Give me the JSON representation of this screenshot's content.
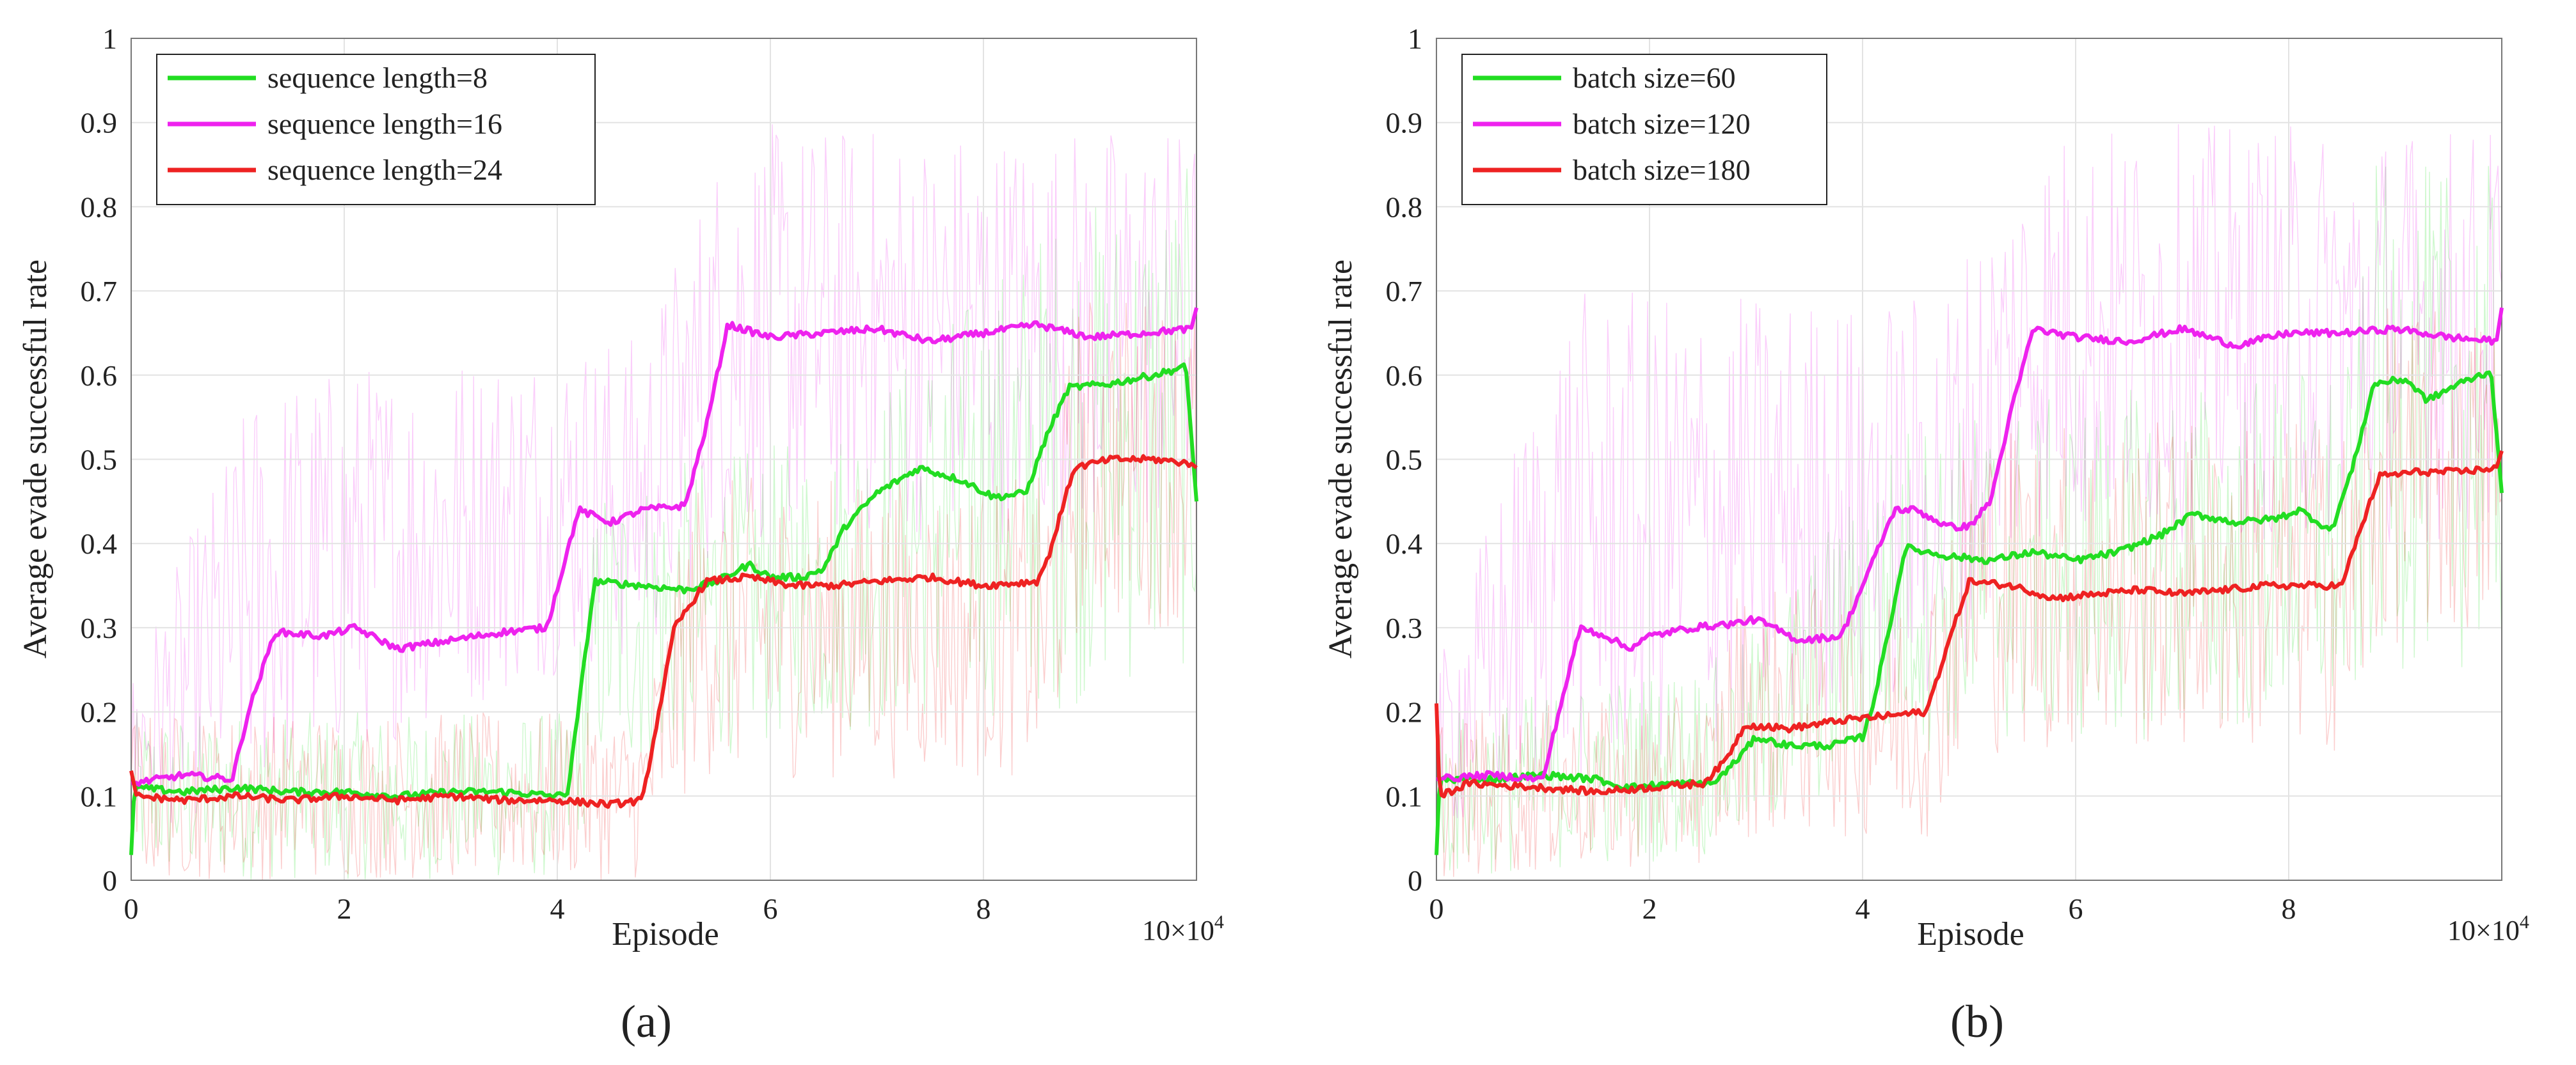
{
  "figure": {
    "exponent_label": "10×10",
    "exponent_sup": "4"
  },
  "chart_data": [
    {
      "type": "line",
      "panel_label": "(a)",
      "xlabel": "Episode",
      "ylabel": "Average evade successful rate",
      "xlim": [
        0,
        10
      ],
      "ylim": [
        0,
        1
      ],
      "xtick_labels": [
        "0",
        "2",
        "4",
        "6",
        "8",
        "10"
      ],
      "ytick_labels": [
        "0",
        "0.1",
        "0.2",
        "0.3",
        "0.4",
        "0.5",
        "0.6",
        "0.7",
        "0.8",
        "0.9",
        "1"
      ],
      "grid": true,
      "legend_position": "top-left",
      "series": [
        {
          "name": "sequence length=8",
          "color": "#22dd22",
          "noise": [
            [
              0,
              0.1,
              0.1
            ],
            [
              4.1,
              0.1,
              0.1
            ],
            [
              4.4,
              0.3,
              0.18
            ],
            [
              6.5,
              0.35,
              0.18
            ],
            [
              8.7,
              0.5,
              0.3
            ],
            [
              10,
              0.55,
              0.3
            ]
          ],
          "points": [
            [
              0,
              0.03
            ],
            [
              0.03,
              0.11
            ],
            [
              0.5,
              0.105
            ],
            [
              1.0,
              0.11
            ],
            [
              1.5,
              0.105
            ],
            [
              2.0,
              0.105
            ],
            [
              2.5,
              0.1
            ],
            [
              3.0,
              0.105
            ],
            [
              3.5,
              0.105
            ],
            [
              4.0,
              0.1
            ],
            [
              4.1,
              0.105
            ],
            [
              4.35,
              0.355
            ],
            [
              4.8,
              0.35
            ],
            [
              5.2,
              0.345
            ],
            [
              5.5,
              0.355
            ],
            [
              5.8,
              0.375
            ],
            [
              6.0,
              0.36
            ],
            [
              6.3,
              0.36
            ],
            [
              6.5,
              0.37
            ],
            [
              6.7,
              0.42
            ],
            [
              7.0,
              0.46
            ],
            [
              7.4,
              0.49
            ],
            [
              7.8,
              0.475
            ],
            [
              8.1,
              0.455
            ],
            [
              8.4,
              0.46
            ],
            [
              8.6,
              0.53
            ],
            [
              8.8,
              0.585
            ],
            [
              9.2,
              0.59
            ],
            [
              9.6,
              0.6
            ],
            [
              9.9,
              0.61
            ],
            [
              10.0,
              0.45
            ]
          ]
        },
        {
          "name": "sequence length=16",
          "color": "#ee22ee",
          "noise": [
            [
              0,
              0.15,
              0.1
            ],
            [
              1.2,
              0.35,
              0.25
            ],
            [
              4.1,
              0.45,
              0.2
            ],
            [
              4.8,
              0.45,
              0.2
            ],
            [
              5.6,
              0.65,
              0.25
            ],
            [
              10,
              0.65,
              0.25
            ]
          ],
          "points": [
            [
              0,
              0.115
            ],
            [
              0.5,
              0.125
            ],
            [
              0.95,
              0.12
            ],
            [
              1.1,
              0.2
            ],
            [
              1.35,
              0.295
            ],
            [
              1.8,
              0.29
            ],
            [
              2.1,
              0.3
            ],
            [
              2.5,
              0.275
            ],
            [
              3.0,
              0.285
            ],
            [
              3.5,
              0.295
            ],
            [
              3.9,
              0.3
            ],
            [
              4.05,
              0.37
            ],
            [
              4.2,
              0.44
            ],
            [
              4.5,
              0.425
            ],
            [
              4.8,
              0.44
            ],
            [
              5.2,
              0.445
            ],
            [
              5.4,
              0.54
            ],
            [
              5.6,
              0.66
            ],
            [
              6.0,
              0.645
            ],
            [
              6.5,
              0.65
            ],
            [
              7.0,
              0.655
            ],
            [
              7.5,
              0.64
            ],
            [
              8.0,
              0.65
            ],
            [
              8.5,
              0.66
            ],
            [
              9.0,
              0.645
            ],
            [
              9.5,
              0.65
            ],
            [
              9.95,
              0.655
            ],
            [
              10.0,
              0.68
            ]
          ]
        },
        {
          "name": "sequence length=24",
          "color": "#ee2222",
          "noise": [
            [
              0,
              0.1,
              0.1
            ],
            [
              4.8,
              0.1,
              0.1
            ],
            [
              5.3,
              0.3,
              0.18
            ],
            [
              8.6,
              0.3,
              0.18
            ],
            [
              8.9,
              0.5,
              0.2
            ],
            [
              10,
              0.5,
              0.2
            ]
          ],
          "points": [
            [
              0,
              0.13
            ],
            [
              0.05,
              0.1
            ],
            [
              0.5,
              0.095
            ],
            [
              1.0,
              0.1
            ],
            [
              1.5,
              0.095
            ],
            [
              2.0,
              0.1
            ],
            [
              2.5,
              0.095
            ],
            [
              3.0,
              0.1
            ],
            [
              3.5,
              0.095
            ],
            [
              4.0,
              0.095
            ],
            [
              4.5,
              0.09
            ],
            [
              4.8,
              0.095
            ],
            [
              5.1,
              0.3
            ],
            [
              5.4,
              0.355
            ],
            [
              5.8,
              0.36
            ],
            [
              6.2,
              0.35
            ],
            [
              6.6,
              0.35
            ],
            [
              7.0,
              0.355
            ],
            [
              7.5,
              0.36
            ],
            [
              8.0,
              0.35
            ],
            [
              8.5,
              0.355
            ],
            [
              8.6,
              0.38
            ],
            [
              8.85,
              0.49
            ],
            [
              9.2,
              0.5
            ],
            [
              9.6,
              0.5
            ],
            [
              9.95,
              0.495
            ],
            [
              10.0,
              0.49
            ]
          ]
        }
      ]
    },
    {
      "type": "line",
      "panel_label": "(b)",
      "xlabel": "Episode",
      "ylabel": "Average evade successful rate",
      "xlim": [
        0,
        10
      ],
      "ylim": [
        0,
        1
      ],
      "xtick_labels": [
        "0",
        "2",
        "4",
        "6",
        "8",
        "10"
      ],
      "ytick_labels": [
        "0",
        "0.1",
        "0.2",
        "0.3",
        "0.4",
        "0.5",
        "0.6",
        "0.7",
        "0.8",
        "0.9",
        "1"
      ],
      "grid": true,
      "legend_position": "top-left",
      "series": [
        {
          "name": "batch size=60",
          "color": "#22dd22",
          "noise": [
            [
              0,
              0.1,
              0.1
            ],
            [
              2.8,
              0.15,
              0.12
            ],
            [
              4.4,
              0.35,
              0.2
            ],
            [
              8.6,
              0.4,
              0.22
            ],
            [
              8.8,
              0.55,
              0.3
            ],
            [
              10,
              0.55,
              0.3
            ]
          ],
          "points": [
            [
              0,
              0.03
            ],
            [
              0.03,
              0.12
            ],
            [
              0.5,
              0.12
            ],
            [
              1.0,
              0.125
            ],
            [
              1.5,
              0.12
            ],
            [
              1.8,
              0.11
            ],
            [
              2.2,
              0.115
            ],
            [
              2.6,
              0.115
            ],
            [
              2.8,
              0.14
            ],
            [
              3.0,
              0.17
            ],
            [
              3.3,
              0.16
            ],
            [
              3.7,
              0.16
            ],
            [
              4.0,
              0.17
            ],
            [
              4.1,
              0.21
            ],
            [
              4.3,
              0.33
            ],
            [
              4.4,
              0.395
            ],
            [
              4.8,
              0.385
            ],
            [
              5.2,
              0.38
            ],
            [
              5.6,
              0.39
            ],
            [
              6.0,
              0.38
            ],
            [
              6.4,
              0.39
            ],
            [
              6.8,
              0.41
            ],
            [
              7.1,
              0.435
            ],
            [
              7.5,
              0.425
            ],
            [
              7.9,
              0.43
            ],
            [
              8.1,
              0.44
            ],
            [
              8.4,
              0.415
            ],
            [
              8.6,
              0.49
            ],
            [
              8.8,
              0.59
            ],
            [
              9.1,
              0.595
            ],
            [
              9.3,
              0.57
            ],
            [
              9.6,
              0.59
            ],
            [
              9.9,
              0.605
            ],
            [
              10.0,
              0.46
            ]
          ]
        },
        {
          "name": "batch size=120",
          "color": "#ee22ee",
          "noise": [
            [
              0,
              0.15,
              0.1
            ],
            [
              1.2,
              0.4,
              0.3
            ],
            [
              4.0,
              0.45,
              0.25
            ],
            [
              4.7,
              0.45,
              0.25
            ],
            [
              5.6,
              0.65,
              0.25
            ],
            [
              10,
              0.65,
              0.25
            ]
          ],
          "points": [
            [
              0,
              0.12
            ],
            [
              0.5,
              0.125
            ],
            [
              1.0,
              0.12
            ],
            [
              1.15,
              0.2
            ],
            [
              1.35,
              0.3
            ],
            [
              1.6,
              0.29
            ],
            [
              1.8,
              0.275
            ],
            [
              2.0,
              0.29
            ],
            [
              2.4,
              0.3
            ],
            [
              2.8,
              0.305
            ],
            [
              3.0,
              0.31
            ],
            [
              3.4,
              0.285
            ],
            [
              3.8,
              0.29
            ],
            [
              4.1,
              0.38
            ],
            [
              4.3,
              0.44
            ],
            [
              4.5,
              0.44
            ],
            [
              4.8,
              0.42
            ],
            [
              5.0,
              0.42
            ],
            [
              5.2,
              0.45
            ],
            [
              5.4,
              0.56
            ],
            [
              5.6,
              0.655
            ],
            [
              6.0,
              0.645
            ],
            [
              6.5,
              0.64
            ],
            [
              7.0,
              0.655
            ],
            [
              7.5,
              0.635
            ],
            [
              8.0,
              0.65
            ],
            [
              8.5,
              0.65
            ],
            [
              9.0,
              0.655
            ],
            [
              9.5,
              0.645
            ],
            [
              9.95,
              0.64
            ],
            [
              10.0,
              0.68
            ]
          ]
        },
        {
          "name": "batch size=180",
          "color": "#ee2222",
          "noise": [
            [
              0,
              0.1,
              0.1
            ],
            [
              2.6,
              0.12,
              0.1
            ],
            [
              2.8,
              0.2,
              0.15
            ],
            [
              4.6,
              0.2,
              0.15
            ],
            [
              5.0,
              0.35,
              0.2
            ],
            [
              8.6,
              0.35,
              0.2
            ],
            [
              8.9,
              0.48,
              0.2
            ],
            [
              10,
              0.48,
              0.2
            ]
          ],
          "points": [
            [
              0,
              0.21
            ],
            [
              0.03,
              0.1
            ],
            [
              0.3,
              0.115
            ],
            [
              1.0,
              0.11
            ],
            [
              1.5,
              0.105
            ],
            [
              2.0,
              0.11
            ],
            [
              2.5,
              0.115
            ],
            [
              2.7,
              0.14
            ],
            [
              2.9,
              0.185
            ],
            [
              3.3,
              0.18
            ],
            [
              3.8,
              0.19
            ],
            [
              4.2,
              0.195
            ],
            [
              4.6,
              0.2
            ],
            [
              4.8,
              0.28
            ],
            [
              5.0,
              0.355
            ],
            [
              5.4,
              0.35
            ],
            [
              5.8,
              0.335
            ],
            [
              6.2,
              0.34
            ],
            [
              6.6,
              0.345
            ],
            [
              7.0,
              0.34
            ],
            [
              7.4,
              0.345
            ],
            [
              7.8,
              0.35
            ],
            [
              8.2,
              0.35
            ],
            [
              8.5,
              0.35
            ],
            [
              8.6,
              0.39
            ],
            [
              8.85,
              0.48
            ],
            [
              9.2,
              0.485
            ],
            [
              9.6,
              0.485
            ],
            [
              9.95,
              0.49
            ],
            [
              10.0,
              0.51
            ]
          ]
        }
      ]
    }
  ]
}
